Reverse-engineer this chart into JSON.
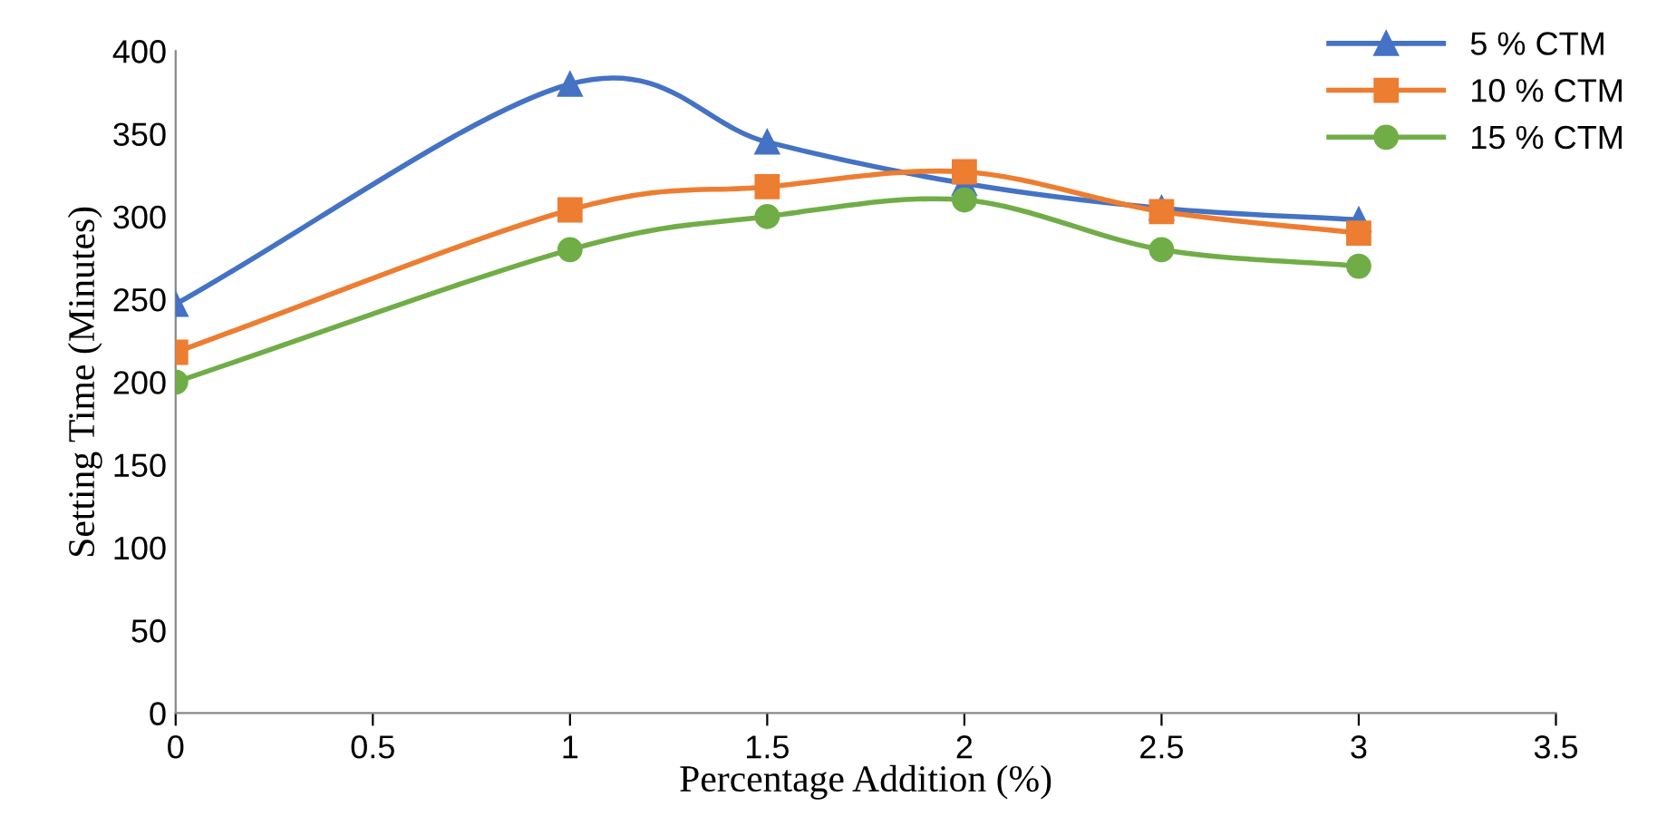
{
  "chart_data": {
    "type": "line",
    "xlabel": "Percentage Addition (%)",
    "ylabel": "Setting Time (Minutes)",
    "x": [
      0,
      1,
      1.5,
      2,
      2.5,
      3
    ],
    "series": [
      {
        "name": "5 % CTM",
        "color": "#4472c4",
        "marker": "triangle",
        "values": [
          247,
          380,
          345,
          320,
          305,
          298
        ]
      },
      {
        "name": "10 % CTM",
        "color": "#ed7d31",
        "marker": "square",
        "values": [
          218,
          304,
          318,
          327,
          303,
          290
        ]
      },
      {
        "name": "15 % CTM",
        "color": "#70ad47",
        "marker": "circle",
        "values": [
          200,
          280,
          300,
          310,
          280,
          270
        ]
      }
    ],
    "xlim": [
      0,
      3.5
    ],
    "xticks": [
      0,
      0.5,
      1,
      1.5,
      2,
      2.5,
      3,
      3.5
    ],
    "ylim": [
      0,
      400
    ],
    "yticks": [
      0,
      50,
      100,
      150,
      200,
      250,
      300,
      350,
      400
    ],
    "grid": false,
    "legend": "top right",
    "line_style": "solid"
  }
}
